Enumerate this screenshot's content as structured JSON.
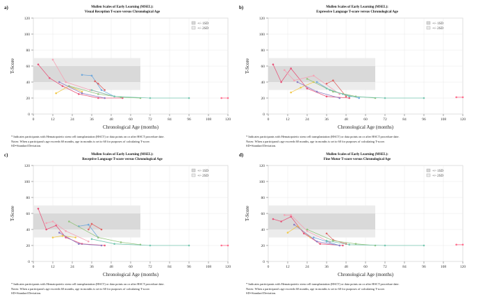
{
  "x_ticks": [
    "0",
    "12",
    "24",
    "36",
    "48",
    "60",
    "72",
    "84",
    "96",
    "108",
    "120"
  ],
  "y_ticks": [
    "0",
    "20",
    "40",
    "60",
    "80",
    "100",
    "120"
  ],
  "xlabel": "Chronological Age (months)",
  "ylabel": "T-Score",
  "legend": {
    "sd1": "+/- 1SD",
    "sd2": "+/- 2SD"
  },
  "footnotes": {
    "note1": "* Indicates participants with Hematopoietic stem cell transplantation (HSCT) or data points on or after HSCT procedure date.",
    "note2": "Notes: When a participant's age exceeds 60 months, age in months is set to 60 for purposes of calculating T-score.",
    "note3": "SD=Standard Deviation."
  },
  "panels": [
    {
      "label": "a)",
      "title_line1": "Mullen Scales of Early Learning (MSEL):",
      "title_line2": "Visual Reception T-score versus Chronological Age"
    },
    {
      "label": "b)",
      "title_line1": "Mullen Scales of Early Learning (MSEL):",
      "title_line2": "Expressive Language T-score versus Chronological Age"
    },
    {
      "label": "c)",
      "title_line1": "Mullen Scales of Early Learning (MSEL):",
      "title_line2": "Receptive Language T-score versus Chronological Age"
    },
    {
      "label": "d)",
      "title_line1": "Mullen Scales of Early Learning (MSEL):",
      "title_line2": "Fine Motor T-score versus Chronological Age"
    }
  ],
  "chart_data": [
    {
      "type": "line",
      "title": "Mullen Scales of Early Learning (MSEL): Visual Reception T-score versus Chronological Age",
      "xlabel": "Chronological Age (months)",
      "ylabel": "T-Score",
      "xlim": [
        0,
        120
      ],
      "ylim": [
        0,
        120
      ],
      "bands": {
        "sd1": [
          40,
          60
        ],
        "sd2": [
          30,
          70
        ],
        "x_range": [
          0,
          66
        ]
      },
      "series": [
        {
          "color": "#e8567b",
          "x": [
            3,
            10,
            18,
            28,
            40,
            55
          ],
          "y": [
            62,
            45,
            35,
            25,
            20,
            20
          ]
        },
        {
          "color": "#f5a3b5",
          "x": [
            12,
            20,
            35,
            50
          ],
          "y": [
            68,
            40,
            30,
            22
          ]
        },
        {
          "color": "#f2c94c",
          "x": [
            14,
            22,
            30
          ],
          "y": [
            26,
            35,
            28
          ]
        },
        {
          "color": "#6fa8dc",
          "x": [
            30,
            36,
            42,
            50
          ],
          "y": [
            49,
            48,
            30,
            22
          ]
        },
        {
          "color": "#e06666",
          "x": [
            38,
            40,
            44
          ],
          "y": [
            41,
            38,
            30
          ]
        },
        {
          "color": "#93c47d",
          "x": [
            22,
            40,
            54,
            66
          ],
          "y": [
            35,
            25,
            21,
            20
          ]
        },
        {
          "color": "#8e7cc3",
          "x": [
            16,
            30,
            44
          ],
          "y": [
            40,
            26,
            20
          ]
        },
        {
          "color": "#76c7b0",
          "x": [
            36,
            50,
            72,
            96
          ],
          "y": [
            30,
            22,
            20,
            20
          ]
        },
        {
          "color": "#ff6f8e",
          "x": [
            116,
            120
          ],
          "y": [
            20,
            20
          ]
        }
      ]
    },
    {
      "type": "line",
      "title": "Mullen Scales of Early Learning (MSEL): Expressive Language T-score versus Chronological Age",
      "xlabel": "Chronological Age (months)",
      "ylabel": "T-Score",
      "xlim": [
        0,
        120
      ],
      "ylim": [
        0,
        120
      ],
      "bands": {
        "sd1": [
          40,
          60
        ],
        "sd2": [
          30,
          70
        ],
        "x_range": [
          0,
          66
        ]
      },
      "series": [
        {
          "color": "#e8567b",
          "x": [
            3,
            8,
            14,
            24,
            36,
            50
          ],
          "y": [
            62,
            40,
            57,
            32,
            22,
            20
          ]
        },
        {
          "color": "#f5a3b5",
          "x": [
            10,
            16,
            28,
            44
          ],
          "y": [
            55,
            42,
            48,
            25
          ]
        },
        {
          "color": "#f2c94c",
          "x": [
            14,
            20,
            28
          ],
          "y": [
            27,
            33,
            40
          ]
        },
        {
          "color": "#6fa8dc",
          "x": [
            30,
            38,
            46,
            56
          ],
          "y": [
            40,
            30,
            25,
            20
          ]
        },
        {
          "color": "#e06666",
          "x": [
            36,
            40,
            48
          ],
          "y": [
            38,
            42,
            22
          ]
        },
        {
          "color": "#93c47d",
          "x": [
            24,
            40,
            54,
            66
          ],
          "y": [
            44,
            28,
            22,
            20
          ]
        },
        {
          "color": "#8e7cc3",
          "x": [
            18,
            30,
            44
          ],
          "y": [
            40,
            28,
            20
          ]
        },
        {
          "color": "#76c7b0",
          "x": [
            36,
            50,
            72,
            96
          ],
          "y": [
            32,
            22,
            20,
            20
          ]
        },
        {
          "color": "#ff6f8e",
          "x": [
            116,
            120
          ],
          "y": [
            21,
            21
          ]
        }
      ]
    },
    {
      "type": "line",
      "title": "Mullen Scales of Early Learning (MSEL): Receptive Language T-score versus Chronological Age",
      "xlabel": "Chronological Age (months)",
      "ylabel": "T-Score",
      "xlim": [
        0,
        120
      ],
      "ylim": [
        0,
        120
      ],
      "bands": {
        "sd1": [
          40,
          60
        ],
        "sd2": [
          30,
          70
        ],
        "x_range": [
          0,
          66
        ]
      },
      "series": [
        {
          "color": "#e8567b",
          "x": [
            3,
            8,
            14,
            20,
            30,
            44
          ],
          "y": [
            66,
            40,
            45,
            30,
            22,
            20
          ]
        },
        {
          "color": "#f5a3b5",
          "x": [
            8,
            12,
            20,
            34
          ],
          "y": [
            48,
            50,
            38,
            25
          ]
        },
        {
          "color": "#f2c94c",
          "x": [
            12,
            18,
            26
          ],
          "y": [
            30,
            32,
            30
          ]
        },
        {
          "color": "#6fa8dc",
          "x": [
            28,
            34,
            40
          ],
          "y": [
            44,
            46,
            30
          ]
        },
        {
          "color": "#e06666",
          "x": [
            34,
            36,
            42
          ],
          "y": [
            40,
            47,
            40
          ]
        },
        {
          "color": "#93c47d",
          "x": [
            22,
            40,
            54,
            66
          ],
          "y": [
            50,
            30,
            24,
            21
          ]
        },
        {
          "color": "#8e7cc3",
          "x": [
            16,
            28,
            42
          ],
          "y": [
            36,
            22,
            20
          ]
        },
        {
          "color": "#76c7b0",
          "x": [
            36,
            50,
            72,
            96
          ],
          "y": [
            28,
            22,
            20,
            20
          ]
        },
        {
          "color": "#ff6f8e",
          "x": [
            116,
            120
          ],
          "y": [
            20,
            20
          ]
        }
      ]
    },
    {
      "type": "line",
      "title": "Mullen Scales of Early Learning (MSEL): Fine Motor T-score versus Chronological Age",
      "xlabel": "Chronological Age (months)",
      "ylabel": "T-Score",
      "xlim": [
        0,
        120
      ],
      "ylim": [
        0,
        120
      ],
      "bands": {
        "sd1": [
          40,
          60
        ],
        "sd2": [
          30,
          70
        ],
        "x_range": [
          0,
          66
        ]
      },
      "series": [
        {
          "color": "#e8567b",
          "x": [
            3,
            8,
            14,
            22,
            32,
            46
          ],
          "y": [
            53,
            50,
            56,
            35,
            22,
            20
          ]
        },
        {
          "color": "#f5a3b5",
          "x": [
            10,
            14,
            24,
            38
          ],
          "y": [
            58,
            58,
            38,
            24
          ]
        },
        {
          "color": "#f2c94c",
          "x": [
            12,
            18,
            26
          ],
          "y": [
            36,
            44,
            30
          ]
        },
        {
          "color": "#6fa8dc",
          "x": [
            28,
            36,
            44
          ],
          "y": [
            30,
            25,
            20
          ]
        },
        {
          "color": "#e06666",
          "x": [
            36,
            40,
            48
          ],
          "y": [
            35,
            27,
            22
          ]
        },
        {
          "color": "#93c47d",
          "x": [
            24,
            40,
            54,
            66
          ],
          "y": [
            40,
            26,
            22,
            20
          ]
        },
        {
          "color": "#8e7cc3",
          "x": [
            16,
            30,
            44
          ],
          "y": [
            46,
            25,
            20
          ]
        },
        {
          "color": "#76c7b0",
          "x": [
            36,
            50,
            72,
            96
          ],
          "y": [
            26,
            21,
            20,
            20
          ]
        },
        {
          "color": "#ff6f8e",
          "x": [
            116,
            120
          ],
          "y": [
            21,
            21
          ]
        }
      ]
    }
  ]
}
